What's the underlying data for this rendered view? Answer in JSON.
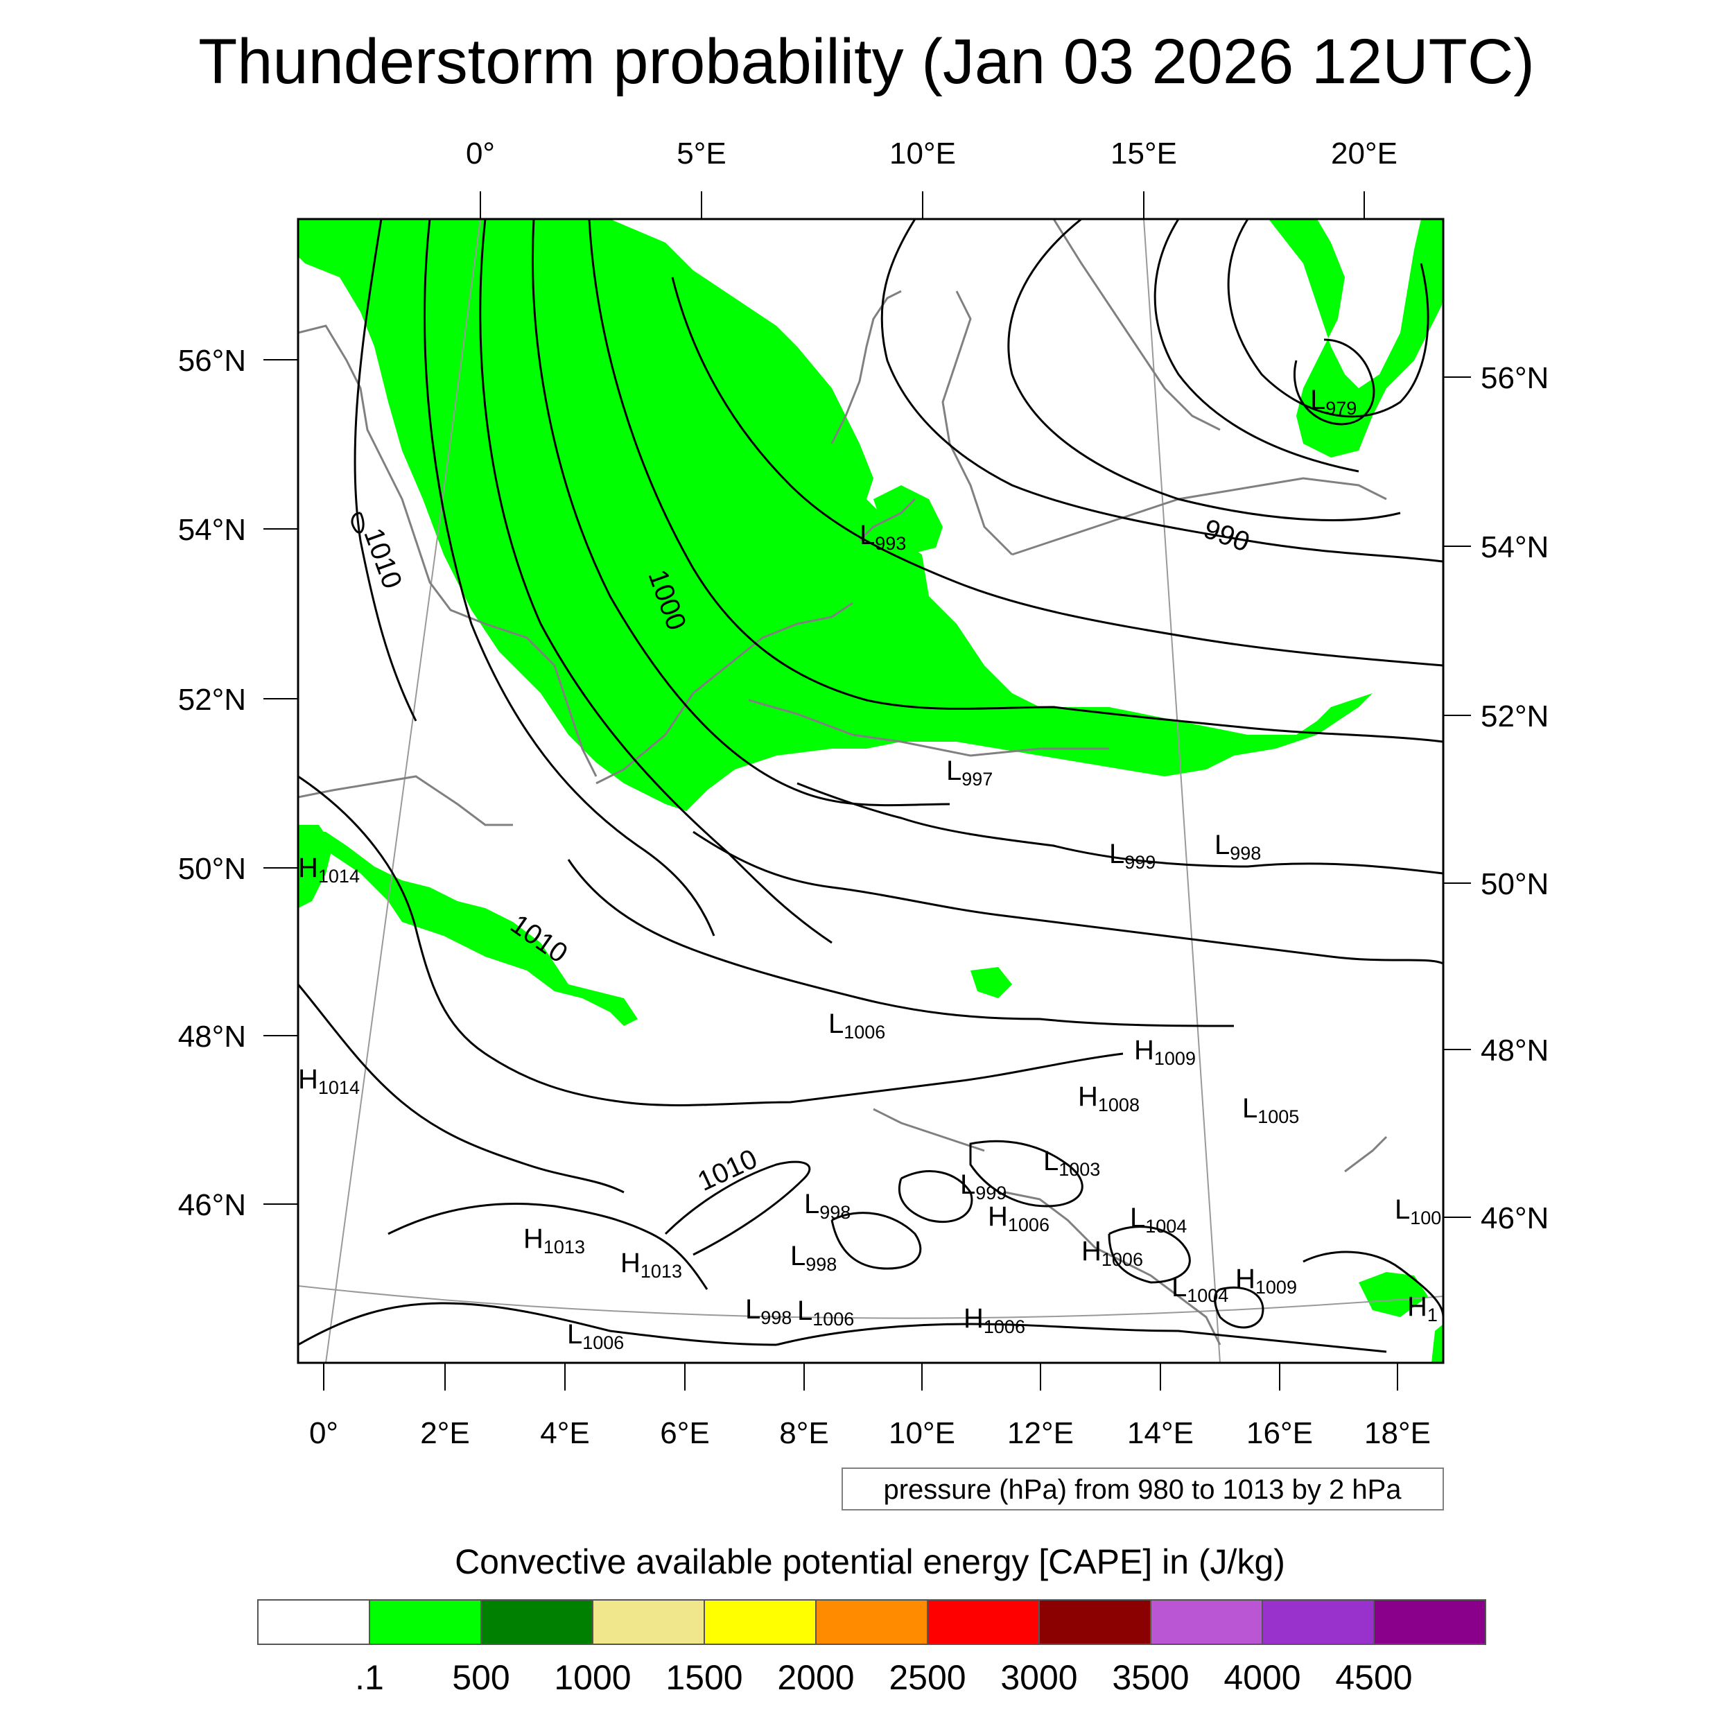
{
  "title": "Thunderstorm probability (Jan 03 2026 12UTC)",
  "top_lon_labels": [
    "0°",
    "5°E",
    "10°E",
    "15°E",
    "20°E"
  ],
  "bottom_lon_labels": [
    "0°",
    "2°E",
    "4°E",
    "6°E",
    "8°E",
    "10°E",
    "12°E",
    "14°E",
    "16°E",
    "18°E"
  ],
  "left_lat_labels": [
    "56°N",
    "54°N",
    "52°N",
    "50°N",
    "48°N",
    "46°N"
  ],
  "right_lat_labels": [
    "56°N",
    "54°N",
    "52°N",
    "50°N",
    "48°N",
    "46°N"
  ],
  "pressure_note": "pressure (hPa) from 980 to 1013 by 2 hPa",
  "colorbar": {
    "title": "Convective available potential energy [CAPE] in (J/kg)",
    "colors": [
      "#ffffff",
      "#00ff00",
      "#008000",
      "#f0e68c",
      "#ffff00",
      "#ff8c00",
      "#ff0000",
      "#8b0000",
      "#ba55d3",
      "#9932cc",
      "#8b008b"
    ],
    "tick_labels": [
      ".1",
      "500",
      "1000",
      "1500",
      "2000",
      "2500",
      "3000",
      "3500",
      "4000",
      "4500"
    ]
  },
  "isobar_labels": [
    "1010",
    "1010",
    "1000",
    "990",
    "1010"
  ],
  "pressure_centers": [
    {
      "type": "L",
      "value": "979"
    },
    {
      "type": "L",
      "value": "993"
    },
    {
      "type": "H",
      "value": "1014"
    },
    {
      "type": "H",
      "value": "1014"
    },
    {
      "type": "L",
      "value": "997"
    },
    {
      "type": "L",
      "value": "999"
    },
    {
      "type": "L",
      "value": "998"
    },
    {
      "type": "L",
      "value": "1006"
    },
    {
      "type": "H",
      "value": "1009"
    },
    {
      "type": "H",
      "value": "1008"
    },
    {
      "type": "L",
      "value": "1005"
    },
    {
      "type": "L",
      "value": "1003"
    },
    {
      "type": "L",
      "value": "999"
    },
    {
      "type": "L",
      "value": "998"
    },
    {
      "type": "H",
      "value": "1006"
    },
    {
      "type": "L",
      "value": "1004"
    },
    {
      "type": "H",
      "value": "1013"
    },
    {
      "type": "H",
      "value": "1013"
    },
    {
      "type": "L",
      "value": "998"
    },
    {
      "type": "H",
      "value": "1006"
    },
    {
      "type": "L",
      "value": "1004"
    },
    {
      "type": "H",
      "value": "1009"
    },
    {
      "type": "L",
      "value": "998"
    },
    {
      "type": "L",
      "value": "1006"
    },
    {
      "type": "H",
      "value": "1006"
    },
    {
      "type": "L",
      "value": "1006"
    },
    {
      "type": "L",
      "value": "100"
    },
    {
      "type": "H",
      "value": "1"
    }
  ],
  "cape_color": "#00ff00"
}
